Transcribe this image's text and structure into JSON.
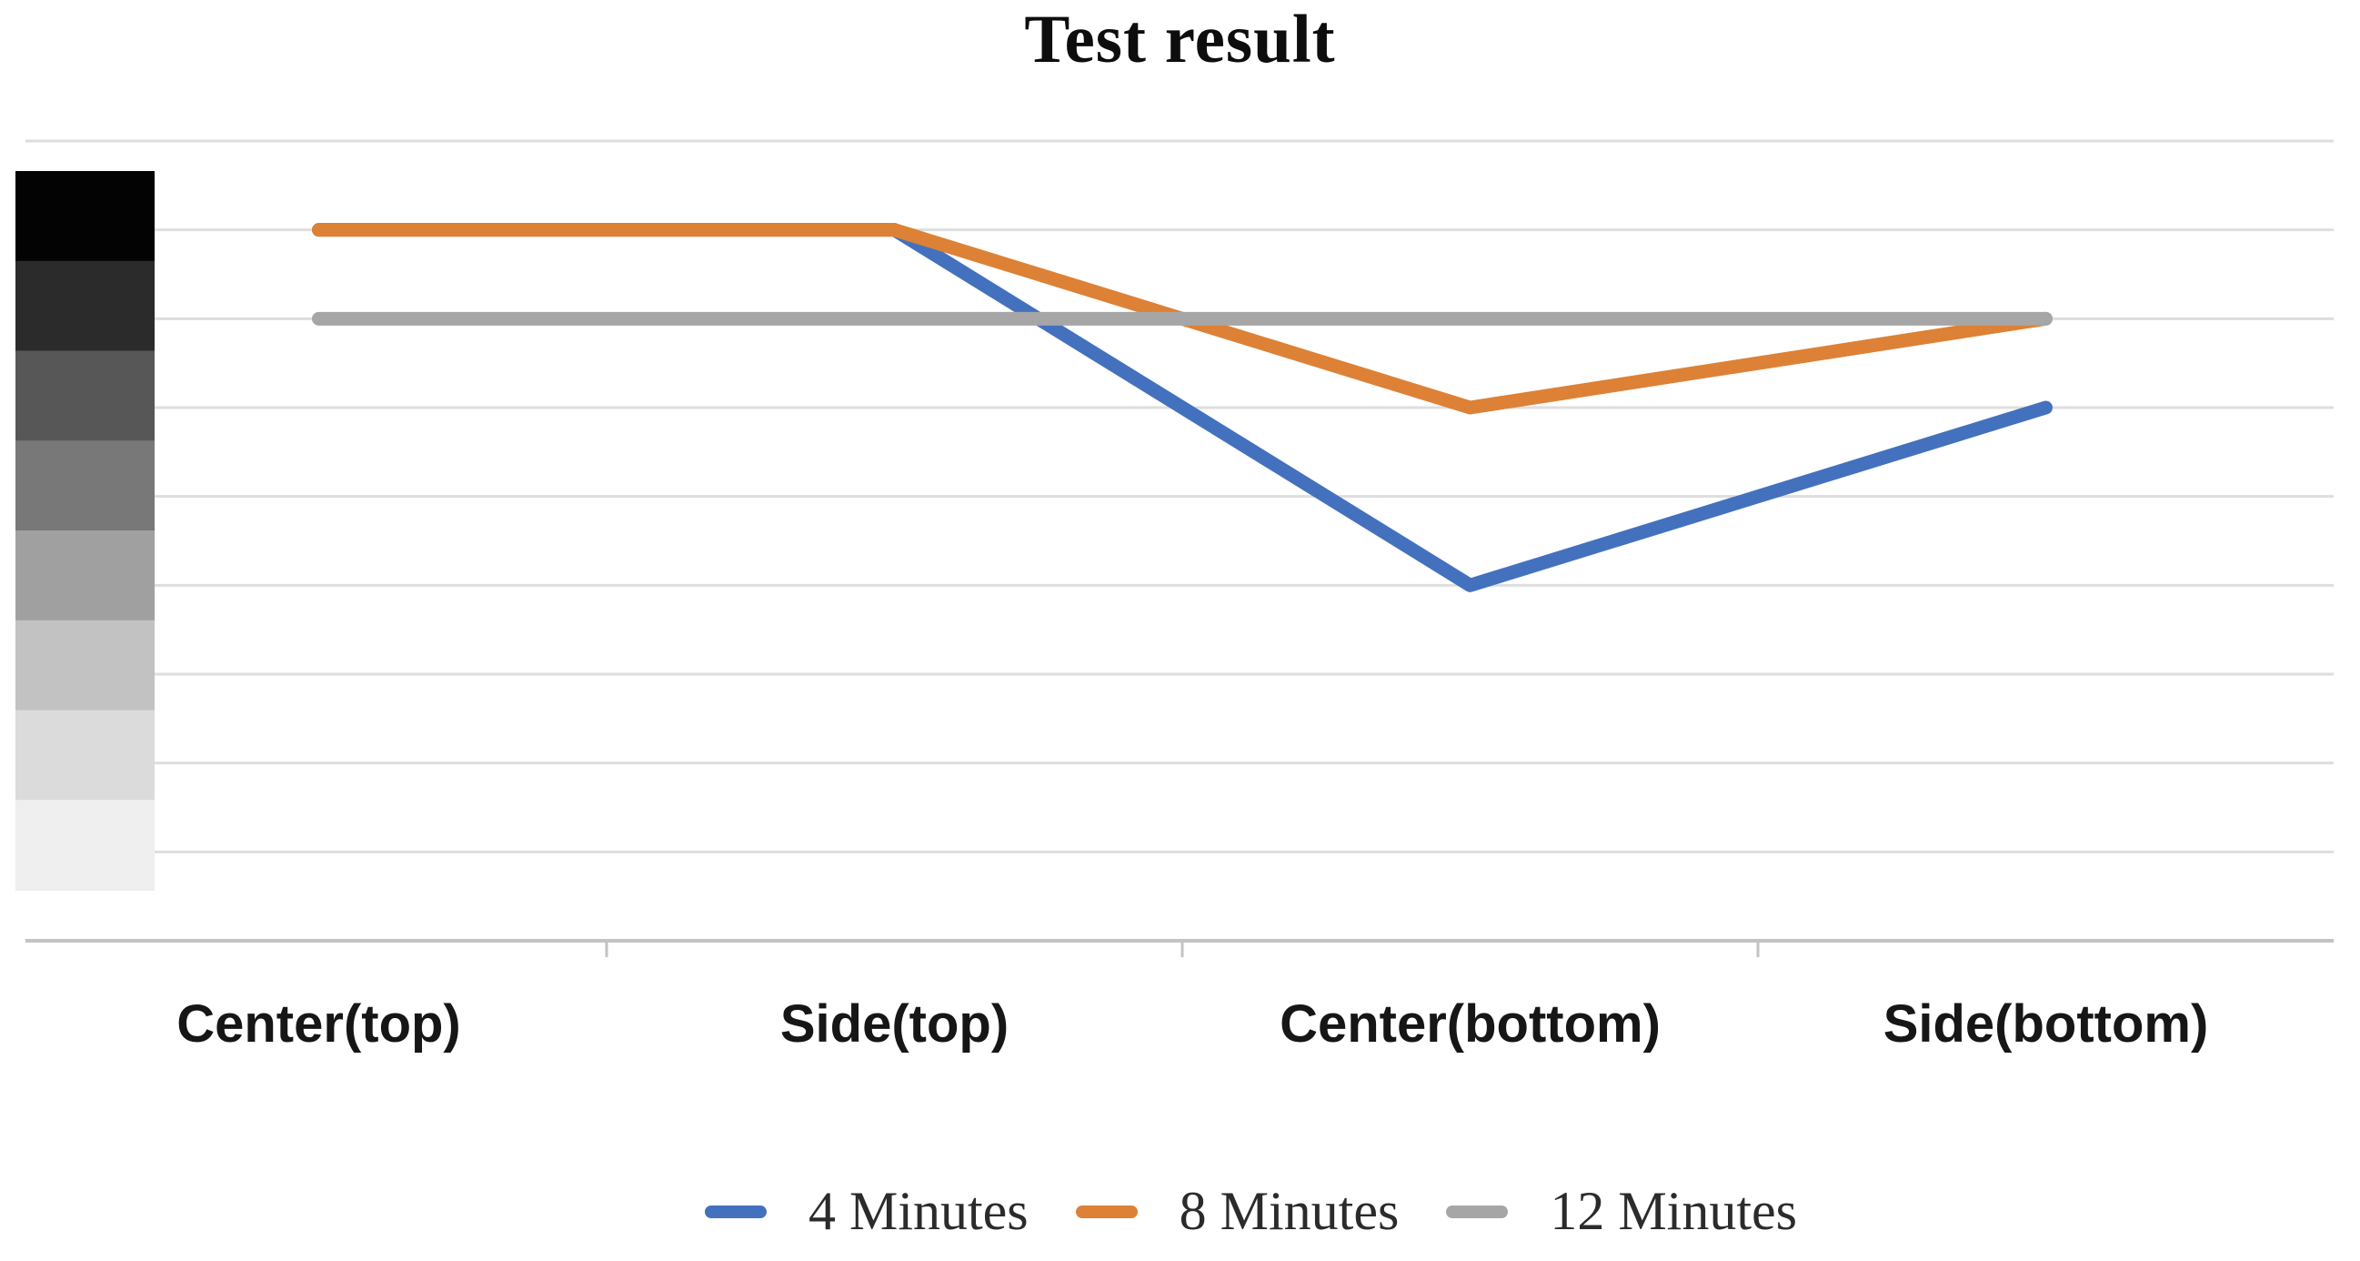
{
  "title": "Test result",
  "chart_data": {
    "type": "line",
    "title": "Test result",
    "categories": [
      "Center(top)",
      "Side(top)",
      "Center(bottom)",
      "Side(bottom)"
    ],
    "series": [
      {
        "name": "4 Minutes",
        "color": "#4471BE",
        "values": [
          8,
          8,
          4,
          6
        ]
      },
      {
        "name": "8 Minutes",
        "color": "#DD8136",
        "values": [
          8,
          8,
          6,
          7
        ]
      },
      {
        "name": "12 Minutes",
        "color": "#A6A6A6",
        "values": [
          7,
          7,
          7,
          7
        ]
      }
    ],
    "ylim": [
      0,
      9
    ],
    "grid": true,
    "gridline_color": "#DEDEDE",
    "axis_color": "#C3C3C3",
    "legend_position": "bottom",
    "y_axis_swatches": [
      "#030303",
      "#2B2B2B",
      "#575757",
      "#787878",
      "#A0A0A0",
      "#C2C2C2",
      "#DBDBDB",
      "#EFEFEF"
    ]
  }
}
